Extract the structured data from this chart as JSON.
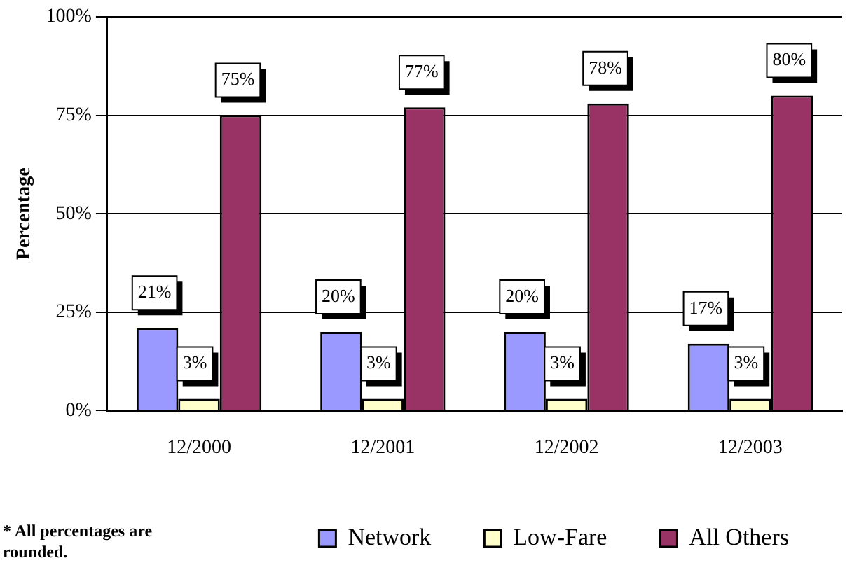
{
  "chart_data": {
    "type": "bar",
    "ylabel": "Percentage",
    "categories": [
      "12/2000",
      "12/2001",
      "12/2002",
      "12/2003"
    ],
    "series": [
      {
        "name": "Network",
        "color": "#9999ff",
        "values": [
          21,
          20,
          20,
          17
        ],
        "value_labels": [
          "21%",
          "20%",
          "20%",
          "17%"
        ]
      },
      {
        "name": "Low-Fare",
        "color": "#ffffcc",
        "values": [
          3,
          3,
          3,
          3
        ],
        "value_labels": [
          "3%",
          "3%",
          "3%",
          "3%"
        ]
      },
      {
        "name": "All Others",
        "color": "#993366",
        "values": [
          75,
          77,
          78,
          80
        ],
        "value_labels": [
          "75%",
          "77%",
          "78%",
          "80%"
        ]
      }
    ],
    "ylim": [
      0,
      100
    ],
    "yticks": [
      {
        "value": 0,
        "label": "0%"
      },
      {
        "value": 25,
        "label": "25%"
      },
      {
        "value": 50,
        "label": "50%"
      },
      {
        "value": 75,
        "label": "75%"
      },
      {
        "value": 100,
        "label": "100%"
      }
    ],
    "grid": "y",
    "legend": "bottom",
    "annotations": [
      "* All percentages are rounded."
    ]
  }
}
